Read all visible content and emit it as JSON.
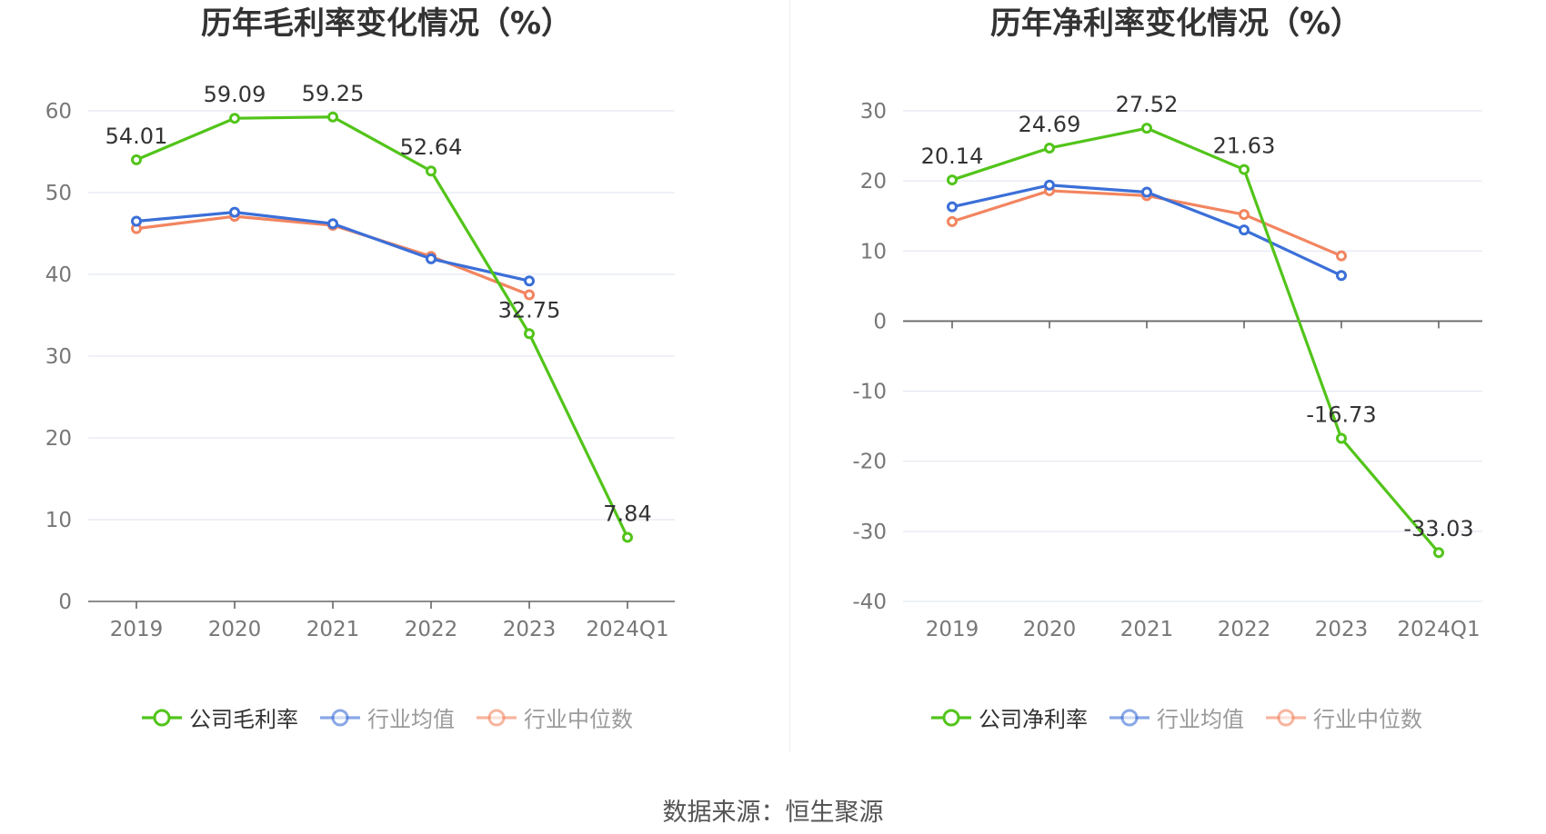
{
  "charts": [
    {
      "chart_data": {
        "type": "line",
        "title": "历年毛利率变化情况（%）",
        "categories": [
          "2019",
          "2020",
          "2021",
          "2022",
          "2023",
          "2024Q1"
        ],
        "ylim": [
          0,
          60
        ],
        "yticks": [
          0,
          10,
          20,
          30,
          40,
          50,
          60
        ],
        "grid": true,
        "legend_position": "bottom",
        "series": [
          {
            "name": "公司毛利率",
            "color": "#52c41a",
            "labeled": true,
            "dim": false,
            "values": [
              54.01,
              59.09,
              59.25,
              52.64,
              32.75,
              7.84
            ]
          },
          {
            "name": "行业均值",
            "color": "#3b6fd8",
            "labeled": false,
            "dim": true,
            "values": [
              46.5,
              47.6,
              46.2,
              41.9,
              39.2,
              null
            ]
          },
          {
            "name": "行业中位数",
            "color": "#f28560",
            "labeled": false,
            "dim": true,
            "values": [
              45.6,
              47.1,
              46.0,
              42.2,
              37.5,
              null
            ]
          }
        ]
      }
    },
    {
      "chart_data": {
        "type": "line",
        "title": "历年净利率变化情况（%）",
        "categories": [
          "2019",
          "2020",
          "2021",
          "2022",
          "2023",
          "2024Q1"
        ],
        "ylim": [
          -40,
          30
        ],
        "yticks": [
          -40,
          -30,
          -20,
          -10,
          0,
          10,
          20,
          30
        ],
        "grid": true,
        "legend_position": "bottom",
        "series": [
          {
            "name": "公司净利率",
            "color": "#52c41a",
            "labeled": true,
            "dim": false,
            "values": [
              20.14,
              24.69,
              27.52,
              21.63,
              -16.73,
              -33.03
            ]
          },
          {
            "name": "行业均值",
            "color": "#3b6fd8",
            "labeled": false,
            "dim": true,
            "values": [
              16.3,
              19.4,
              18.4,
              13.0,
              6.5,
              null
            ]
          },
          {
            "name": "行业中位数",
            "color": "#f28560",
            "labeled": false,
            "dim": true,
            "values": [
              14.2,
              18.6,
              17.9,
              15.2,
              9.3,
              null
            ]
          }
        ]
      }
    }
  ],
  "footer": {
    "source": "数据来源：恒生聚源"
  }
}
